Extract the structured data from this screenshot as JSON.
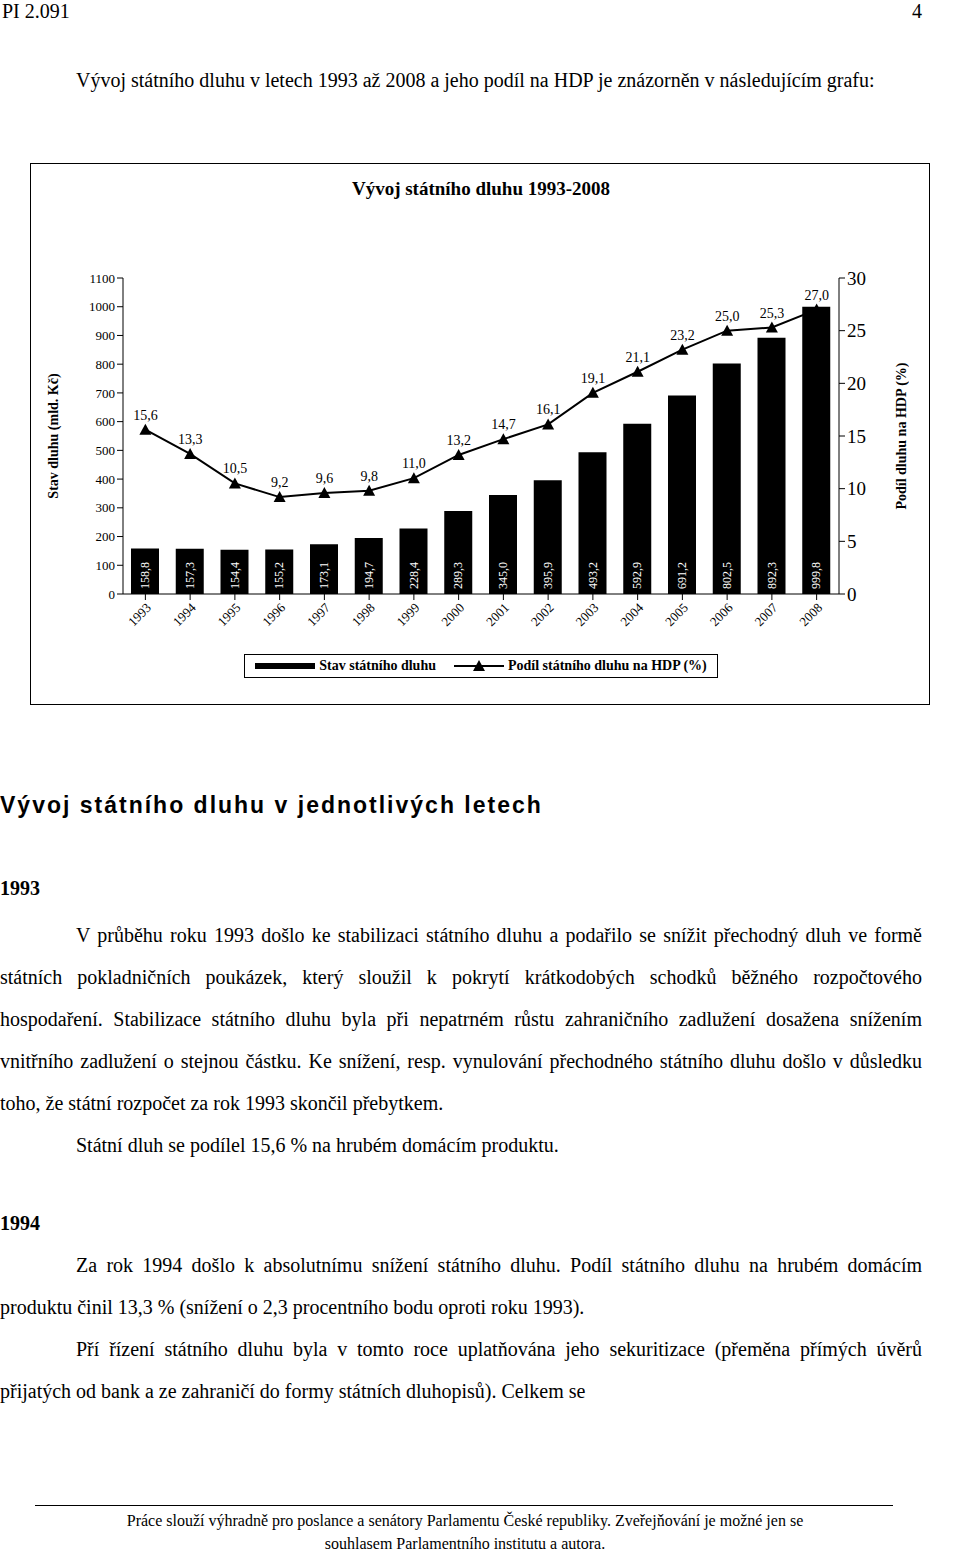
{
  "header": {
    "code": "PI 2.091",
    "page": "4"
  },
  "intro": "Vývoj státního dluhu v letech 1993 až 2008 a jeho podíl na HDP je znázorněn v následujícím grafu:",
  "chart_data": {
    "type": "bar",
    "title": "Vývoj státního dluhu 1993-2008",
    "ylabel": "Stav dluhu (mld. Kč)",
    "y2label": "Podíl dluhu na HDP (%)",
    "categories": [
      "1993",
      "1994",
      "1995",
      "1996",
      "1997",
      "1998",
      "1999",
      "2000",
      "2001",
      "2002",
      "2003",
      "2004",
      "2005",
      "2006",
      "2007",
      "2008"
    ],
    "ylim": [
      0,
      1100
    ],
    "yticks": [
      0,
      100,
      200,
      300,
      400,
      500,
      600,
      700,
      800,
      900,
      1000,
      1100
    ],
    "y2lim": [
      0,
      30
    ],
    "y2ticks": [
      0,
      5,
      10,
      15,
      20,
      25,
      30
    ],
    "grid": false,
    "legend": "bottom",
    "data_labels": true,
    "series": [
      {
        "name": "Stav státního dluhu",
        "type": "bar",
        "color": "#000000",
        "values": [
          158.8,
          157.3,
          154.4,
          155.2,
          173.1,
          194.7,
          228.4,
          289.3,
          345.0,
          395.9,
          493.2,
          592.9,
          691.2,
          802.5,
          892.3,
          999.8
        ],
        "value_labels": [
          "158,8",
          "157,3",
          "154,4",
          "155,2",
          "173,1",
          "194,7",
          "228,4",
          "289,3",
          "345,0",
          "395,9",
          "493,2",
          "592,9",
          "691,2",
          "802,5",
          "892,3",
          "999,8"
        ]
      },
      {
        "name": "Podíl státního dluhu na HDP (%)",
        "type": "line",
        "axis": "y2",
        "color": "#000000",
        "marker": "triangle",
        "values": [
          15.6,
          13.3,
          10.5,
          9.2,
          9.6,
          9.8,
          11.0,
          13.2,
          14.7,
          16.1,
          19.1,
          21.1,
          23.2,
          25.0,
          25.3,
          27.0
        ],
        "value_labels": [
          "15,6",
          "13,3",
          "10,5",
          "9,2",
          "9,6",
          "9,8",
          "11,0",
          "13,2",
          "14,7",
          "16,1",
          "19,1",
          "21,1",
          "23,2",
          "25,0",
          "25,3",
          "27,0"
        ]
      }
    ]
  },
  "section_title": "Vývoj státního dluhu v jednotlivých letech",
  "sections": [
    {
      "year": "1993",
      "paragraphs": [
        "V průběhu roku 1993 došlo ke stabilizaci státního dluhu a podařilo se snížit přechodný dluh ve formě státních pokladničních poukázek, který sloužil k pokrytí krátkodobých schodků běžného rozpočtového hospodaření. Stabilizace státního dluhu byla při nepatrném růstu zahraničního zadlužení dosažena snížením vnitřního zadlužení o stejnou částku. Ke snížení, resp. vynulování přechodného státního dluhu došlo v důsledku toho, že státní rozpočet za rok 1993 skončil přebytkem.",
        "Státní dluh se podílel 15,6 % na hrubém domácím produktu."
      ]
    },
    {
      "year": "1994",
      "paragraphs": [
        "Za rok 1994 došlo k absolutnímu snížení státního dluhu. Podíl státního dluhu na hrubém domácím produktu činil 13,3 % (snížení o 2,3 procentního bodu oproti roku 1993).",
        "Pří řízení státního dluhu byla v tomto roce uplatňována jeho sekuritizace (přeměna přímých úvěrů přijatých od bank a ze zahraničí do formy státních dluhopisů). Celkem se"
      ]
    }
  ],
  "footer": [
    "Práce slouží výhradně pro poslance a senátory Parlamentu České republiky. Zveřejňování je možné jen se",
    "souhlasem Parlamentního institutu a autora."
  ]
}
